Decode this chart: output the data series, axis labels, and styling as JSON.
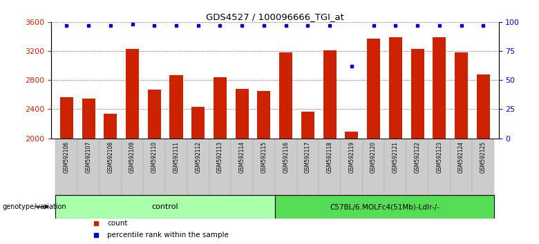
{
  "title": "GDS4527 / 100096666_TGI_at",
  "samples": [
    "GSM592106",
    "GSM592107",
    "GSM592108",
    "GSM592109",
    "GSM592110",
    "GSM592111",
    "GSM592112",
    "GSM592113",
    "GSM592114",
    "GSM592115",
    "GSM592116",
    "GSM592117",
    "GSM592118",
    "GSM592119",
    "GSM592120",
    "GSM592121",
    "GSM592122",
    "GSM592123",
    "GSM592124",
    "GSM592125"
  ],
  "counts": [
    2570,
    2550,
    2340,
    3230,
    2670,
    2870,
    2430,
    2840,
    2680,
    2650,
    3180,
    2370,
    3210,
    2090,
    3370,
    3390,
    3230,
    3390,
    3180,
    2880
  ],
  "percentile_ranks": [
    97,
    97,
    97,
    98,
    97,
    97,
    97,
    97,
    97,
    97,
    97,
    97,
    97,
    62,
    97,
    97,
    97,
    97,
    97,
    97
  ],
  "groups": [
    "control",
    "control",
    "control",
    "control",
    "control",
    "control",
    "control",
    "control",
    "control",
    "control",
    "C57BL/6.MOLFc4(51Mb)-Ldlr-/-",
    "C57BL/6.MOLFc4(51Mb)-Ldlr-/-",
    "C57BL/6.MOLFc4(51Mb)-Ldlr-/-",
    "C57BL/6.MOLFc4(51Mb)-Ldlr-/-",
    "C57BL/6.MOLFc4(51Mb)-Ldlr-/-",
    "C57BL/6.MOLFc4(51Mb)-Ldlr-/-",
    "C57BL/6.MOLFc4(51Mb)-Ldlr-/-",
    "C57BL/6.MOLFc4(51Mb)-Ldlr-/-",
    "C57BL/6.MOLFc4(51Mb)-Ldlr-/-",
    "C57BL/6.MOLFc4(51Mb)-Ldlr-/-"
  ],
  "bar_color": "#cc2200",
  "dot_color": "#0000cc",
  "ylim_left": [
    2000,
    3600
  ],
  "ylim_right": [
    0,
    100
  ],
  "yticks_left": [
    2000,
    2400,
    2800,
    3200,
    3600
  ],
  "yticks_right": [
    0,
    25,
    50,
    75,
    100
  ],
  "group_colors_control": "#aaffaa",
  "group_colors_disease": "#55dd55",
  "control_label": "control",
  "disease_label": "C57BL/6.MOLFc4(51Mb)-Ldlr-/-",
  "legend_count": "count",
  "legend_percentile": "percentile rank within the sample",
  "genotype_label": "genotype/variation",
  "background_color": "#ffffff",
  "tick_label_bg": "#cccccc",
  "n_control": 10,
  "n_disease": 10
}
